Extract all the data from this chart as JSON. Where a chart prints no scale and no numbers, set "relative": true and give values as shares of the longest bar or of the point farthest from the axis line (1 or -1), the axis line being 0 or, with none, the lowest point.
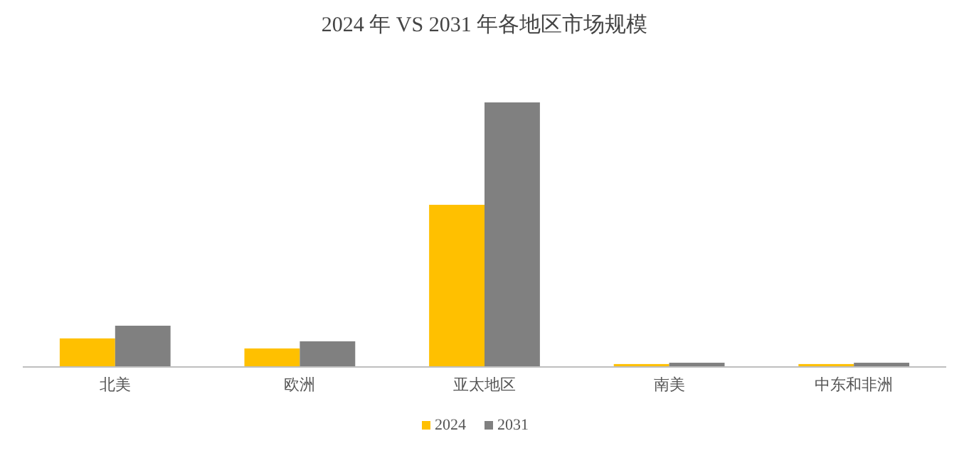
{
  "chart_data": {
    "type": "bar",
    "title": "2024 年 VS 2031 年各地区市场规模",
    "relative": true,
    "legend": "bottom",
    "categories": [
      "北美",
      "欧洲",
      "亚太地区",
      "南美",
      "中东和非洲"
    ],
    "series": [
      {
        "name": "2024",
        "color": "#ffc000",
        "values": [
          0.108,
          0.07,
          0.613,
          0.011,
          0.011
        ]
      },
      {
        "name": "2031",
        "color": "#808080",
        "values": [
          0.156,
          0.097,
          1,
          0.016,
          0.016
        ]
      }
    ]
  }
}
